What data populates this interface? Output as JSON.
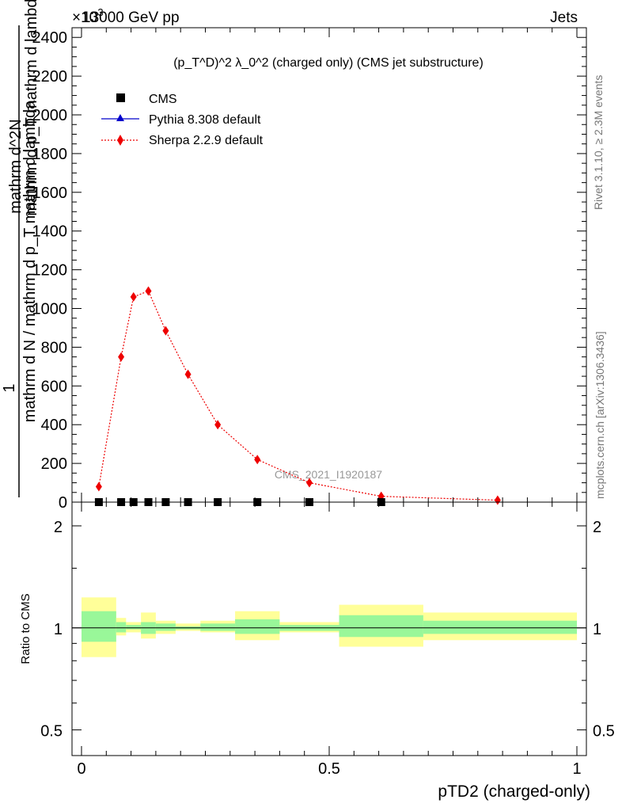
{
  "header": {
    "energy": "13000 GeV pp",
    "category": "Jets",
    "exponent_prefix": "×10",
    "exponent": "-3"
  },
  "side_labels": {
    "rivet": "Rivet 3.1.10, ≥ 2.3M events",
    "mcplots": "mcplots.cern.ch [arXiv:1306.3436]"
  },
  "main_panel": {
    "title": "(p_T^D)^2 λ_0^2 (charged only) (CMS jet substructure)",
    "analysis_tag": "CMS_2021_I1920187",
    "y_label_numerator": "1",
    "y_label_denominator": "mathrm d N / mathrm d p_T mathrm d lambda",
    "y_label_left": "mathrm d^2N",
    "y_label_right": "mathrm d p_T mathrm d lambda",
    "y_ticks": [
      "0",
      "200",
      "400",
      "600",
      "800",
      "1000",
      "1200",
      "1400",
      "1600",
      "1800",
      "2000",
      "2200",
      "2400"
    ]
  },
  "legend": {
    "cms": "CMS",
    "pythia": "Pythia 8.308 default",
    "sherpa": "Sherpa 2.2.9 default"
  },
  "ratio_panel": {
    "y_label": "Ratio to CMS",
    "y_ticks": [
      "0.5",
      "1",
      "2"
    ],
    "x_ticks": [
      "0",
      "0.5",
      "1"
    ],
    "x_label": "pTD2 (charged-only)"
  },
  "colors": {
    "cms": "#000000",
    "pythia": "#0000cc",
    "sherpa": "#ee0000",
    "band_inner": "#99f799",
    "band_outer": "#ffff99"
  },
  "chart_data": {
    "type": "line",
    "title": "(p_T^D)^2 λ_0^2 (charged only) (CMS jet substructure)",
    "xlabel": "pTD2 (charged-only)",
    "ylabel": "1 / mathrm d N / mathrm d p_T mathrm d lambda · mathrm d^2N / mathrm d p_T mathrm d lambda",
    "xlim": [
      0,
      1
    ],
    "ylim": [
      0,
      2450
    ],
    "y_multiplier": "×10^-3",
    "legend_position": "top-left",
    "series": [
      {
        "name": "CMS",
        "marker": "square",
        "x": [
          0.035,
          0.08,
          0.105,
          0.135,
          0.17,
          0.215,
          0.275,
          0.355,
          0.46,
          0.605
        ],
        "y": [
          0,
          0,
          0,
          0,
          0,
          0,
          0,
          0,
          0,
          0
        ]
      },
      {
        "name": "Pythia 8.308 default",
        "marker": "triangle",
        "x": [],
        "y": []
      },
      {
        "name": "Sherpa 2.2.9 default",
        "marker": "diamond",
        "x": [
          0.035,
          0.08,
          0.105,
          0.135,
          0.17,
          0.215,
          0.275,
          0.355,
          0.46,
          0.605,
          0.84
        ],
        "y": [
          80,
          750,
          1060,
          1090,
          885,
          660,
          400,
          220,
          100,
          30,
          10
        ]
      }
    ],
    "ratio": {
      "ylabel": "Ratio to CMS",
      "ylim": [
        0.42,
        2.35
      ],
      "log_scale": true,
      "y_ticks": [
        0.5,
        1,
        2
      ],
      "bands": [
        {
          "x0": 0.0,
          "x1": 0.07,
          "inner": [
            0.91,
            1.12
          ],
          "outer": [
            0.82,
            1.23
          ]
        },
        {
          "x0": 0.07,
          "x1": 0.09,
          "inner": [
            0.97,
            1.04
          ],
          "outer": [
            0.95,
            1.07
          ]
        },
        {
          "x0": 0.09,
          "x1": 0.12,
          "inner": [
            0.99,
            1.02
          ],
          "outer": [
            0.97,
            1.04
          ]
        },
        {
          "x0": 0.12,
          "x1": 0.15,
          "inner": [
            0.96,
            1.04
          ],
          "outer": [
            0.93,
            1.11
          ]
        },
        {
          "x0": 0.15,
          "x1": 0.19,
          "inner": [
            0.98,
            1.03
          ],
          "outer": [
            0.96,
            1.05
          ]
        },
        {
          "x0": 0.19,
          "x1": 0.24,
          "inner": [
            0.99,
            1.01
          ],
          "outer": [
            0.98,
            1.03
          ]
        },
        {
          "x0": 0.24,
          "x1": 0.31,
          "inner": [
            0.98,
            1.03
          ],
          "outer": [
            0.97,
            1.05
          ]
        },
        {
          "x0": 0.31,
          "x1": 0.4,
          "inner": [
            0.96,
            1.06
          ],
          "outer": [
            0.92,
            1.12
          ]
        },
        {
          "x0": 0.4,
          "x1": 0.52,
          "inner": [
            0.98,
            1.02
          ],
          "outer": [
            0.97,
            1.04
          ]
        },
        {
          "x0": 0.52,
          "x1": 0.69,
          "inner": [
            0.94,
            1.09
          ],
          "outer": [
            0.88,
            1.17
          ]
        },
        {
          "x0": 0.69,
          "x1": 1.0,
          "inner": [
            0.96,
            1.05
          ],
          "outer": [
            0.92,
            1.11
          ]
        }
      ]
    }
  }
}
